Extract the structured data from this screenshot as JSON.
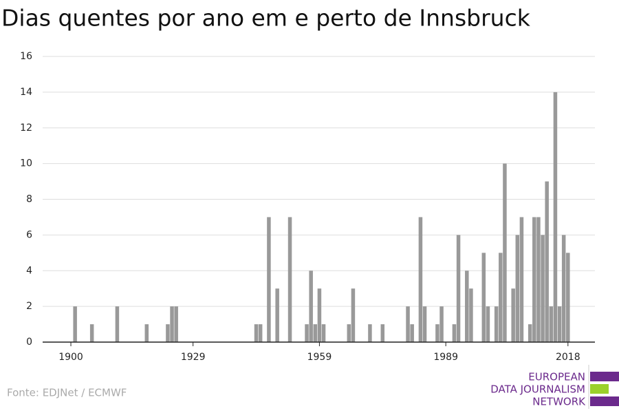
{
  "chart_data": {
    "type": "bar",
    "title": "Dias quentes por ano em e perto de Innsbruck",
    "source": "Fonte: EDJNet / ECMWF",
    "logo": [
      "EUROPEAN",
      "DATA JOURNALISM",
      "NETWORK"
    ],
    "color": "#999999",
    "x": [
      1901,
      1905,
      1911,
      1918,
      1923,
      1924,
      1925,
      1944,
      1945,
      1947,
      1949,
      1952,
      1956,
      1957,
      1958,
      1959,
      1960,
      1966,
      1967,
      1971,
      1974,
      1980,
      1981,
      1983,
      1984,
      1987,
      1988,
      1991,
      1992,
      1994,
      1995,
      1998,
      1999,
      2001,
      2002,
      2003,
      2005,
      2006,
      2007,
      2009,
      2010,
      2011,
      2012,
      2013,
      2014,
      2015,
      2016,
      2017,
      2018
    ],
    "values": [
      2,
      1,
      2,
      1,
      1,
      2,
      2,
      1,
      1,
      7,
      3,
      7,
      1,
      4,
      1,
      3,
      1,
      1,
      3,
      1,
      1,
      2,
      1,
      7,
      2,
      1,
      2,
      1,
      6,
      4,
      3,
      5,
      2,
      2,
      5,
      10,
      3,
      6,
      7,
      1,
      7,
      7,
      6,
      9,
      2,
      14,
      2,
      6,
      5
    ],
    "xlim": [
      1893.3,
      2024.4
    ],
    "xticks": [
      1900,
      1929,
      1959,
      1989,
      2018
    ],
    "ylim": [
      0,
      16
    ],
    "yticks": [
      0,
      2,
      4,
      6,
      8,
      10,
      12,
      14,
      16
    ],
    "grid": true
  }
}
